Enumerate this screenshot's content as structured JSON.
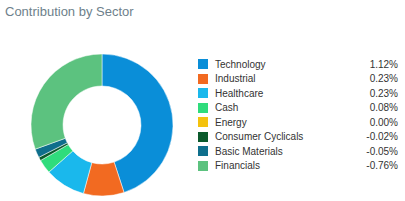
{
  "chart_data": {
    "type": "pie",
    "title": "Contribution by Sector",
    "categories": [
      "Technology",
      "Industrial",
      "Healthcare",
      "Cash",
      "Energy",
      "Consumer Cyclicals",
      "Basic Materials",
      "Financials"
    ],
    "values": [
      1.12,
      0.23,
      0.23,
      0.08,
      0.0,
      -0.02,
      -0.05,
      -0.76
    ],
    "value_labels": [
      "1.12%",
      "0.23%",
      "0.23%",
      "0.08%",
      "0.00%",
      "-0.02%",
      "-0.05%",
      "-0.76%"
    ],
    "colors": [
      "#0a8ed8",
      "#f26a21",
      "#1ab8ec",
      "#2fdc7c",
      "#f4c20d",
      "#0b5a2c",
      "#0f6f8c",
      "#5cc27f"
    ],
    "legend": "right"
  }
}
